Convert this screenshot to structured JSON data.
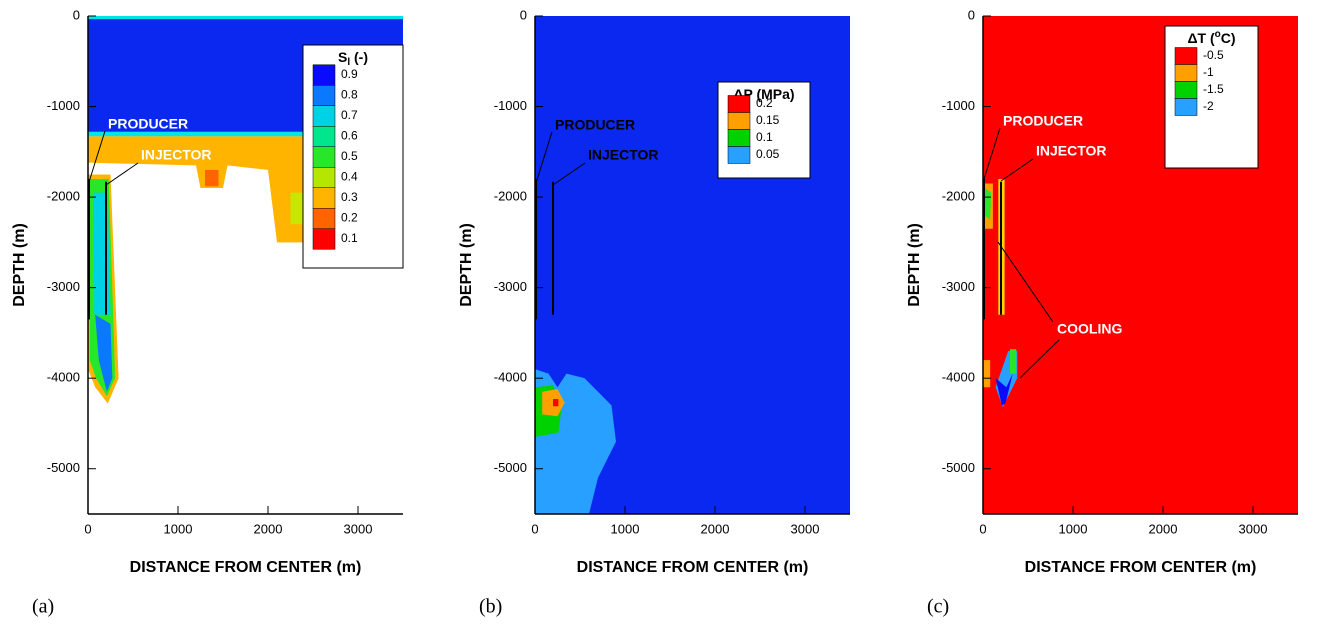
{
  "chart_data": [
    {
      "type": "contour",
      "xlabel": "DISTANCE FROM CENTER (m)",
      "ylabel": "DEPTH (m)",
      "xlim": [
        0,
        3500
      ],
      "ylim": [
        -5500,
        0
      ],
      "xticks": [
        0,
        1000,
        2000,
        3000
      ],
      "yticks": [
        0,
        -1000,
        -2000,
        -3000,
        -4000,
        -5000
      ],
      "legend_title": "S",
      "legend_title_sub": "l",
      "legend_title_end": " (-)",
      "levels": [
        0.9,
        0.8,
        0.7,
        0.6,
        0.5,
        0.4,
        0.3,
        0.2,
        0.1
      ],
      "colors": [
        "#0a0aff",
        "#0a78ff",
        "#00d2e6",
        "#00e68c",
        "#28e628",
        "#b4e600",
        "#ffb400",
        "#ff6400",
        "#ff0000"
      ],
      "annotations": [
        "PRODUCER",
        "INJECTOR"
      ],
      "caption": "(a)"
    },
    {
      "type": "contour",
      "xlabel": "DISTANCE FROM CENTER (m)",
      "ylabel": "DEPTH (m)",
      "xlim": [
        0,
        3500
      ],
      "ylim": [
        -5500,
        0
      ],
      "xticks": [
        0,
        1000,
        2000,
        3000
      ],
      "yticks": [
        0,
        -1000,
        -2000,
        -3000,
        -4000,
        -5000
      ],
      "legend_title": "ΔP (MPa)",
      "levels": [
        0.2,
        0.15,
        0.1,
        0.05
      ],
      "colors": [
        "#ff0000",
        "#ffa000",
        "#00d200",
        "#28a0ff"
      ],
      "annotations": [
        "PRODUCER",
        "INJECTOR"
      ],
      "caption": "(b)"
    },
    {
      "type": "contour",
      "xlabel": "DISTANCE FROM CENTER (m)",
      "ylabel": "DEPTH (m)",
      "xlim": [
        0,
        3500
      ],
      "ylim": [
        -5500,
        0
      ],
      "xticks": [
        0,
        1000,
        2000,
        3000
      ],
      "yticks": [
        0,
        -1000,
        -2000,
        -3000,
        -4000,
        -5000
      ],
      "legend_title": "ΔT (",
      "legend_title_sup": "o",
      "legend_title_end": "C)",
      "levels": [
        -0.5,
        -1,
        -1.5,
        -2
      ],
      "colors": [
        "#ff0000",
        "#ffa000",
        "#00d200",
        "#28a0ff"
      ],
      "annotations": [
        "PRODUCER",
        "INJECTOR",
        "COOLING"
      ],
      "caption": "(c)"
    }
  ]
}
